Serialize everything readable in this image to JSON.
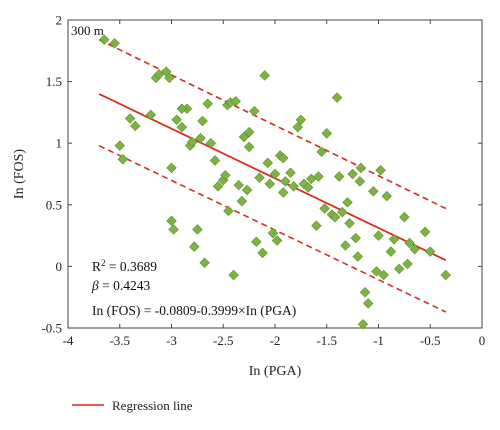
{
  "chart_data": {
    "type": "scatter",
    "panel_label": "300 m",
    "xlabel": "In (PGA)",
    "ylabel": "In (FOS)",
    "xlim": [
      -4,
      0
    ],
    "ylim": [
      -0.5,
      2
    ],
    "xticks": [
      -4,
      -3.5,
      -3,
      -2.5,
      -2,
      -1.5,
      -1,
      -0.5,
      0
    ],
    "xtick_labels": [
      "-4",
      "-3.5",
      "-3",
      "-2.5",
      "-2",
      "-1.5",
      "-1",
      "-0.5",
      "0"
    ],
    "yticks": [
      -0.5,
      0,
      0.5,
      1,
      1.5,
      2
    ],
    "ytick_labels": [
      "-0.5",
      "0",
      "0.5",
      "1",
      "1.5",
      "2"
    ],
    "grid": false,
    "colors": {
      "points": "#7cb342",
      "points_edge": "#5d8f2a",
      "regression": "#d62f1f",
      "axis": "#444444"
    },
    "annotations": {
      "r2_prefix": "R",
      "r2_sup": "2",
      "r2_value": " = 0.3689",
      "beta_symbol": "β",
      "beta_value": " = 0.4243",
      "equation": "In (FOS) = -0.0809-0.3999×In (PGA)"
    },
    "legend": {
      "position": "bottom-left",
      "entries": [
        {
          "label": "Regression line"
        }
      ]
    },
    "regression_line": {
      "x": [
        -3.7,
        -0.35
      ],
      "y": [
        1.4,
        0.05
      ]
    },
    "bounds_upper": {
      "x": [
        -3.7,
        -0.35
      ],
      "y": [
        1.84,
        0.47
      ]
    },
    "bounds_lower": {
      "x": [
        -3.7,
        -0.35
      ],
      "y": [
        0.98,
        -0.37
      ]
    },
    "points": {
      "x": [
        -3.65,
        -3.55,
        -3.5,
        -3.47,
        -3.4,
        -3.35,
        -3.2,
        -3.15,
        -3.12,
        -3.05,
        -3.02,
        -3.0,
        -2.98,
        -2.95,
        -2.9,
        -2.85,
        -2.82,
        -2.8,
        -2.78,
        -2.75,
        -2.72,
        -2.7,
        -2.68,
        -2.65,
        -2.62,
        -2.58,
        -2.55,
        -2.5,
        -2.48,
        -2.46,
        -2.45,
        -2.43,
        -2.4,
        -2.38,
        -2.35,
        -2.32,
        -2.3,
        -2.27,
        -2.25,
        -2.2,
        -2.18,
        -2.15,
        -2.12,
        -2.1,
        -2.07,
        -2.05,
        -2.02,
        -2.0,
        -1.98,
        -1.95,
        -1.92,
        -1.9,
        -1.85,
        -1.82,
        -1.78,
        -1.75,
        -1.72,
        -1.68,
        -1.65,
        -1.6,
        -1.58,
        -1.55,
        -1.52,
        -1.5,
        -1.45,
        -1.42,
        -1.4,
        -1.38,
        -1.35,
        -1.32,
        -1.3,
        -1.28,
        -1.25,
        -1.22,
        -1.2,
        -1.18,
        -1.17,
        -1.15,
        -1.13,
        -1.1,
        -1.05,
        -1.02,
        -1.0,
        -0.98,
        -0.95,
        -0.92,
        -0.88,
        -0.85,
        -0.8,
        -0.75,
        -0.72,
        -0.7,
        -0.65,
        -0.55,
        -0.5,
        -0.35,
        -3.0,
        -2.9,
        -2.25,
        -1.92
      ],
      "y": [
        1.84,
        1.81,
        0.98,
        0.87,
        1.2,
        1.14,
        1.23,
        1.53,
        1.56,
        1.58,
        1.53,
        0.8,
        0.3,
        1.19,
        1.13,
        1.28,
        0.98,
        1.01,
        0.16,
        0.3,
        1.04,
        1.18,
        0.03,
        1.32,
        1.0,
        0.86,
        0.65,
        0.7,
        0.74,
        1.31,
        0.45,
        1.33,
        -0.07,
        1.34,
        0.66,
        0.53,
        1.05,
        0.62,
        1.09,
        1.26,
        0.2,
        0.72,
        0.11,
        1.55,
        0.84,
        0.67,
        0.27,
        0.75,
        0.21,
        0.9,
        0.88,
        0.69,
        0.76,
        0.65,
        1.13,
        1.19,
        0.67,
        0.64,
        0.71,
        0.33,
        0.73,
        0.93,
        0.47,
        1.08,
        0.42,
        0.4,
        1.37,
        0.73,
        0.44,
        0.17,
        0.52,
        0.35,
        0.75,
        0.23,
        0.08,
        0.69,
        0.8,
        -0.47,
        -0.21,
        -0.3,
        0.61,
        -0.04,
        0.25,
        0.78,
        -0.07,
        0.57,
        0.12,
        0.22,
        -0.02,
        0.4,
        0.02,
        0.19,
        0.14,
        0.28,
        0.12,
        -0.07,
        0.37,
        1.28,
        0.97,
        0.6
      ]
    }
  }
}
